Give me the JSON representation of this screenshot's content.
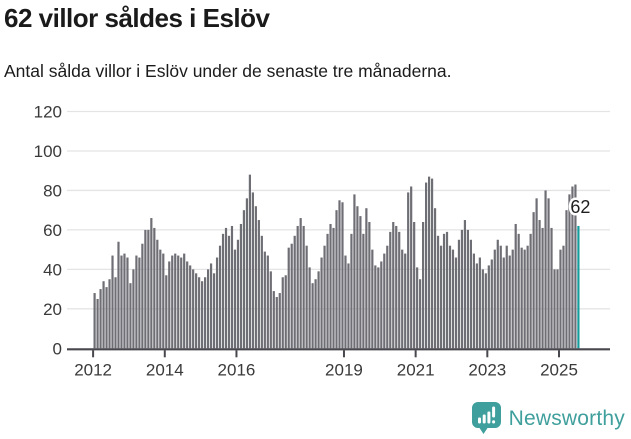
{
  "header": {
    "title": "62 villor såldes i Eslöv",
    "subtitle": "Antal sålda villor i Eslöv under de senaste tre månaderna."
  },
  "chart_data": {
    "type": "bar",
    "title": "62 villor såldes i Eslöv",
    "subtitle": "Antal sålda villor i Eslöv under de senaste tre månaderna.",
    "xlabel": "",
    "ylabel": "",
    "ylim": [
      0,
      120
    ],
    "y_ticks": [
      0,
      20,
      40,
      60,
      80,
      100,
      120
    ],
    "x_tick_labels": [
      "2012",
      "2014",
      "2016",
      "2019",
      "2021",
      "2023",
      "2025"
    ],
    "start_month": "2012-01",
    "frequency": "monthly",
    "grid": "horizontal",
    "legend": "none",
    "values": [
      28,
      25,
      30,
      34,
      31,
      35,
      47,
      36,
      54,
      47,
      48,
      46,
      33,
      40,
      47,
      46,
      53,
      60,
      60,
      66,
      61,
      55,
      50,
      48,
      37,
      44,
      47,
      48,
      47,
      46,
      48,
      44,
      42,
      40,
      38,
      36,
      34,
      36,
      40,
      43,
      38,
      46,
      52,
      58,
      61,
      57,
      62,
      50,
      55,
      63,
      70,
      76,
      88,
      79,
      72,
      65,
      57,
      49,
      47,
      39,
      29,
      26,
      28,
      36,
      37,
      51,
      53,
      57,
      62,
      66,
      62,
      52,
      41,
      33,
      35,
      39,
      46,
      52,
      58,
      63,
      61,
      70,
      75,
      74,
      47,
      43,
      58,
      78,
      72,
      67,
      58,
      71,
      64,
      50,
      42,
      41,
      44,
      48,
      52,
      59,
      64,
      62,
      59,
      50,
      48,
      79,
      82,
      64,
      41,
      35,
      64,
      84,
      87,
      86,
      71,
      57,
      52,
      58,
      59,
      52,
      50,
      46,
      55,
      60,
      65,
      60,
      55,
      48,
      43,
      46,
      40,
      38,
      42,
      45,
      50,
      55,
      52,
      46,
      52,
      47,
      50,
      63,
      58,
      51,
      50,
      52,
      58,
      69,
      76,
      65,
      61,
      80,
      76,
      61,
      40,
      40,
      50,
      52,
      70,
      78,
      82,
      83,
      62
    ],
    "highlight": {
      "index": 162,
      "value": 62,
      "label": "62"
    },
    "colors": {
      "bar": "#6e6e75",
      "highlight_bar": "#169c9c",
      "gridline": "#e4e4e4",
      "axis_line": "#47474d",
      "tick_label": "#3a3a3a",
      "annotation_text": "#1f1f1f",
      "annotation_halo": "#ffffff"
    }
  },
  "branding": {
    "logo_text": "Newsworthy",
    "logo_icon": "speech-bubble-bar-chart-icon",
    "logo_color": "#3f9f9c"
  }
}
